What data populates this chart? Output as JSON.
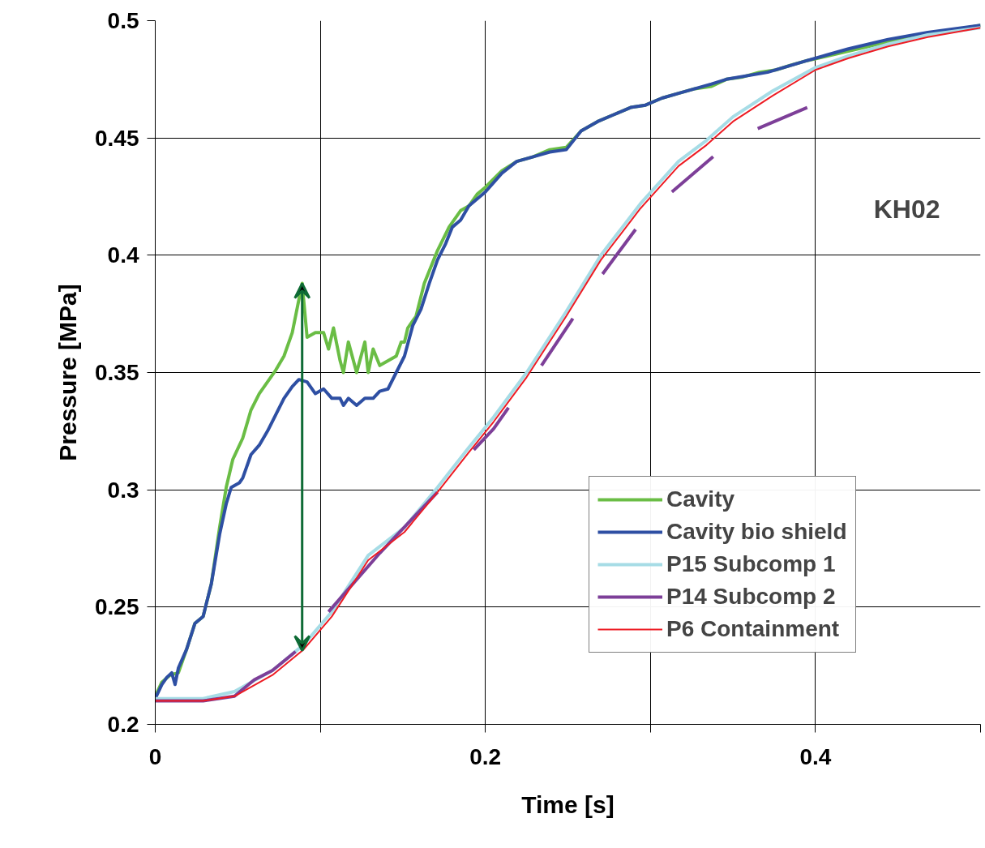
{
  "chart_data": {
    "type": "line",
    "xlabel": "Time [s]",
    "ylabel": "Pressure [MPa]",
    "annotations": [
      "KH02"
    ],
    "xlim": [
      0,
      0.5
    ],
    "ylim": [
      0.2,
      0.5
    ],
    "xticks": [
      0,
      {
        "value": 0.1,
        "label": null
      },
      0.2,
      {
        "value": 0.3,
        "label": null
      },
      0.4,
      {
        "value": 0.5,
        "label": null
      }
    ],
    "yticks": [
      0.2,
      0.25,
      0.3,
      0.35,
      0.4,
      0.45,
      0.5
    ],
    "grid": true,
    "legend": "bottom right",
    "series": [
      {
        "name": "Cavity",
        "color": "#6abd45",
        "x": [
          0,
          0.004,
          0.009,
          0.014,
          0.019,
          0.024,
          0.029,
          0.034,
          0.039,
          0.043,
          0.047,
          0.053,
          0.058,
          0.063,
          0.068,
          0.073,
          0.078,
          0.083,
          0.087,
          0.089,
          0.092,
          0.097,
          0.102,
          0.105,
          0.108,
          0.112,
          0.114,
          0.117,
          0.122,
          0.127,
          0.129,
          0.132,
          0.136,
          0.141,
          0.146,
          0.149,
          0.151,
          0.153,
          0.158,
          0.163,
          0.171,
          0.178,
          0.185,
          0.19,
          0.195,
          0.2,
          0.21,
          0.219,
          0.229,
          0.239,
          0.249,
          0.258,
          0.268,
          0.278,
          0.288,
          0.297,
          0.307,
          0.317,
          0.327,
          0.337,
          0.346,
          0.356,
          0.366,
          0.376,
          0.385,
          0.395,
          0.42,
          0.444,
          0.468,
          0.5
        ],
        "values": [
          0.212,
          0.218,
          0.221,
          0.222,
          0.232,
          0.243,
          0.246,
          0.26,
          0.284,
          0.301,
          0.313,
          0.322,
          0.334,
          0.341,
          0.346,
          0.351,
          0.357,
          0.367,
          0.381,
          0.388,
          0.365,
          0.367,
          0.367,
          0.36,
          0.369,
          0.355,
          0.35,
          0.363,
          0.35,
          0.363,
          0.35,
          0.36,
          0.353,
          0.355,
          0.357,
          0.363,
          0.363,
          0.369,
          0.374,
          0.388,
          0.402,
          0.412,
          0.419,
          0.421,
          0.426,
          0.429,
          0.436,
          0.44,
          0.442,
          0.445,
          0.446,
          0.453,
          0.457,
          0.46,
          0.463,
          0.464,
          0.467,
          0.469,
          0.471,
          0.472,
          0.475,
          0.476,
          0.478,
          0.479,
          0.481,
          0.483,
          0.487,
          0.491,
          0.494,
          0.498
        ]
      },
      {
        "name": "Cavity bio shield",
        "color": "#2e4fa3",
        "x": [
          0,
          0.004,
          0.007,
          0.01,
          0.012,
          0.014,
          0.019,
          0.024,
          0.029,
          0.034,
          0.039,
          0.043,
          0.046,
          0.051,
          0.053,
          0.058,
          0.063,
          0.068,
          0.073,
          0.078,
          0.083,
          0.087,
          0.092,
          0.097,
          0.102,
          0.107,
          0.112,
          0.114,
          0.117,
          0.122,
          0.127,
          0.132,
          0.136,
          0.141,
          0.146,
          0.151,
          0.156,
          0.161,
          0.166,
          0.171,
          0.176,
          0.18,
          0.185,
          0.19,
          0.2,
          0.21,
          0.219,
          0.229,
          0.239,
          0.249,
          0.258,
          0.268,
          0.278,
          0.288,
          0.297,
          0.307,
          0.317,
          0.327,
          0.337,
          0.346,
          0.371,
          0.395,
          0.42,
          0.444,
          0.468,
          0.5
        ],
        "values": [
          0.211,
          0.217,
          0.22,
          0.222,
          0.217,
          0.224,
          0.232,
          0.243,
          0.246,
          0.26,
          0.281,
          0.294,
          0.301,
          0.303,
          0.305,
          0.315,
          0.319,
          0.325,
          0.332,
          0.339,
          0.344,
          0.347,
          0.346,
          0.341,
          0.343,
          0.339,
          0.339,
          0.336,
          0.339,
          0.336,
          0.339,
          0.339,
          0.342,
          0.343,
          0.35,
          0.357,
          0.37,
          0.377,
          0.388,
          0.398,
          0.405,
          0.412,
          0.415,
          0.421,
          0.427,
          0.435,
          0.44,
          0.442,
          0.444,
          0.445,
          0.453,
          0.457,
          0.46,
          0.463,
          0.464,
          0.467,
          0.469,
          0.471,
          0.473,
          0.475,
          0.478,
          0.483,
          0.488,
          0.492,
          0.495,
          0.498
        ]
      },
      {
        "name": "P15 Subcomp 1",
        "color": "#a6dce6",
        "x": [
          0,
          0.029,
          0.048,
          0.071,
          0.09,
          0.107,
          0.129,
          0.151,
          0.171,
          0.19,
          0.205,
          0.225,
          0.249,
          0.27,
          0.294,
          0.317,
          0.334,
          0.35,
          0.374,
          0.4,
          0.42,
          0.444,
          0.468,
          0.5
        ],
        "values": [
          0.211,
          0.211,
          0.214,
          0.223,
          0.234,
          0.248,
          0.272,
          0.284,
          0.301,
          0.318,
          0.331,
          0.35,
          0.376,
          0.4,
          0.422,
          0.44,
          0.449,
          0.459,
          0.47,
          0.48,
          0.485,
          0.49,
          0.494,
          0.497
        ]
      },
      {
        "name": "P14 Subcomp 2",
        "color": "#7d3f98",
        "x": [
          0,
          0.029,
          0.048,
          0.06,
          0.071,
          0.085,
          0.086,
          0.105,
          0.136,
          0.171,
          0.172,
          0.193,
          0.205,
          0.214,
          0.219,
          0.234,
          0.253,
          0.26,
          0.271,
          0.291,
          0.3,
          0.313,
          0.338,
          0.35,
          0.365,
          0.395
        ],
        "values": [
          0.21,
          0.21,
          0.212,
          0.219,
          0.223,
          0.231,
          null,
          0.248,
          0.273,
          0.299,
          null,
          0.317,
          0.326,
          0.335,
          null,
          0.353,
          0.373,
          null,
          0.392,
          0.411,
          null,
          0.427,
          0.442,
          null,
          0.454,
          0.463
        ]
      },
      {
        "name": "P6 Containment",
        "color": "#ed1c24",
        "x": [
          0,
          0.029,
          0.048,
          0.071,
          0.09,
          0.107,
          0.129,
          0.151,
          0.171,
          0.19,
          0.205,
          0.225,
          0.249,
          0.27,
          0.294,
          0.317,
          0.334,
          0.35,
          0.374,
          0.4,
          0.42,
          0.444,
          0.468,
          0.5
        ],
        "values": [
          0.21,
          0.21,
          0.212,
          0.221,
          0.232,
          0.246,
          0.27,
          0.282,
          0.299,
          0.316,
          0.329,
          0.348,
          0.374,
          0.398,
          0.42,
          0.438,
          0.447,
          0.457,
          0.468,
          0.479,
          0.484,
          0.489,
          0.493,
          0.497
        ]
      }
    ]
  }
}
